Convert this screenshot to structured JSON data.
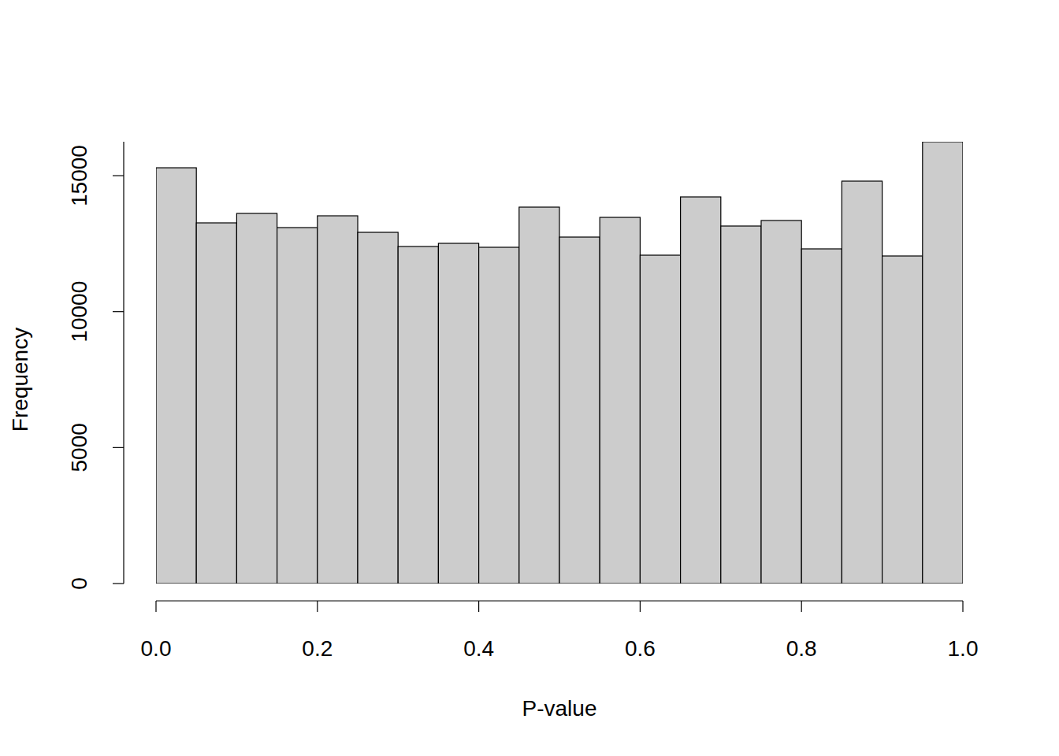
{
  "chart_data": {
    "type": "histogram",
    "x_label": "P-value",
    "y_label": "Frequency",
    "bins": [
      0,
      0.05,
      0.1,
      0.15,
      0.2,
      0.25,
      0.3,
      0.35,
      0.4,
      0.45,
      0.5,
      0.55,
      0.6,
      0.65,
      0.7,
      0.75,
      0.8,
      0.85,
      0.9,
      0.95,
      1
    ],
    "values": [
      15290,
      13264,
      13611,
      13090,
      13524,
      12916,
      12395,
      12511,
      12366,
      13843,
      12742,
      13466,
      12076,
      14219,
      13148,
      13351,
      12308,
      14799,
      12047,
      16247
    ],
    "color": "#cccccc",
    "xlim": [
      0,
      1
    ],
    "xticks": [
      {
        "value": 0,
        "label": "0.0"
      },
      0.2,
      0.4,
      0.6,
      0.8,
      {
        "value": 1,
        "label": "1.0"
      }
    ],
    "ylim": [
      0,
      16247
    ],
    "yticks": [
      0,
      5000,
      10000,
      15000
    ],
    "grid": false
  }
}
